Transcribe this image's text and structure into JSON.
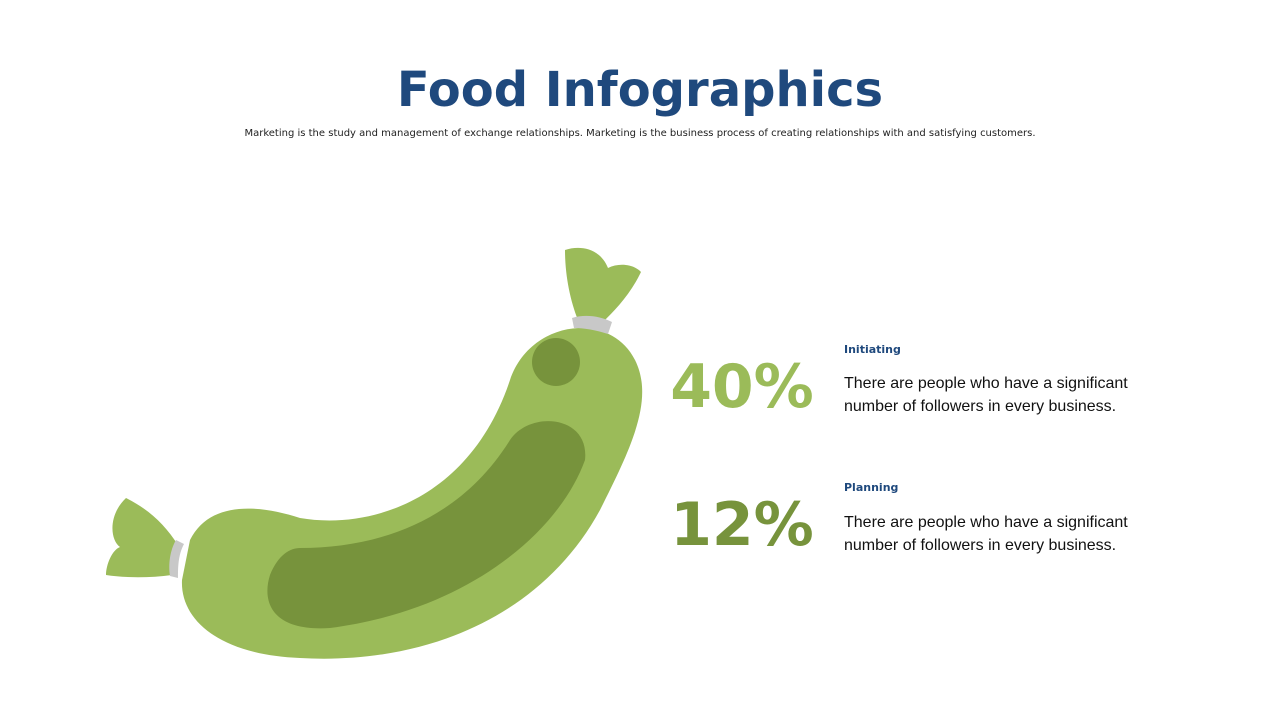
{
  "header": {
    "title": "Food Infographics",
    "subtitle": "Marketing is the study and management of exchange relationships. Marketing is the business process of creating relationships with and satisfying customers."
  },
  "items": [
    {
      "label": "Initiating",
      "percent": "40%",
      "text": "There are people who have a significant number of followers in every business."
    },
    {
      "label": "Planning",
      "percent": "12%",
      "text": "There are people who have a significant number of followers in every business."
    }
  ]
}
